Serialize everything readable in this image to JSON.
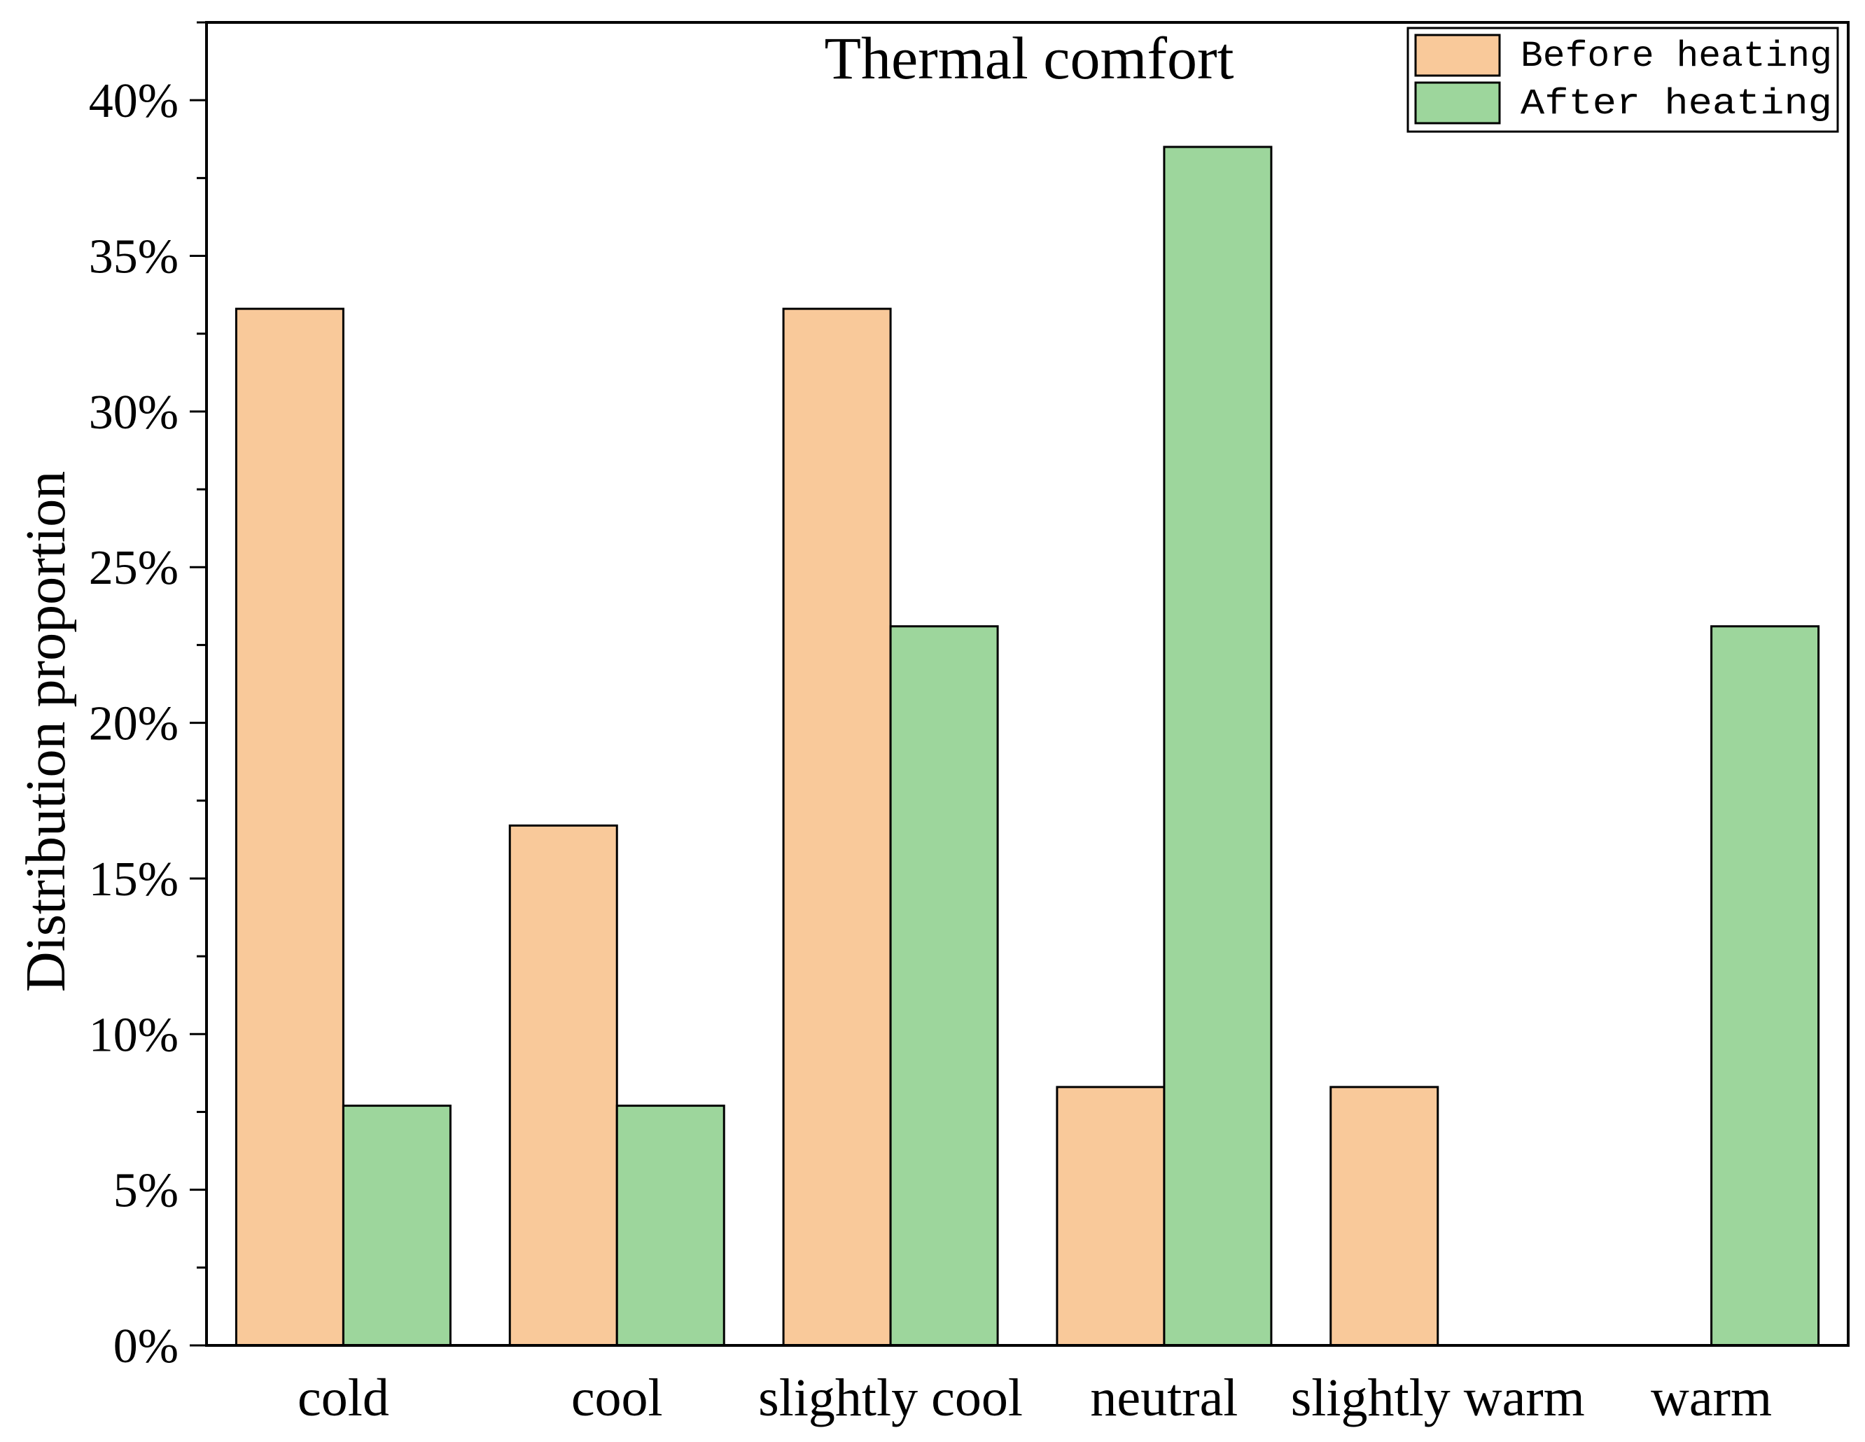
{
  "chart_data": {
    "type": "bar",
    "title": "Thermal comfort",
    "xlabel": "",
    "ylabel": "Distribution proportion",
    "categories": [
      "cold",
      "cool",
      "slightly cool",
      "neutral",
      "slightly warm",
      "warm"
    ],
    "series": [
      {
        "name": "Before heating",
        "color": "#F9C99A",
        "values": [
          33.3,
          16.7,
          33.3,
          8.3,
          8.3,
          0
        ]
      },
      {
        "name": "After heating",
        "color": "#9DD69C",
        "values": [
          7.7,
          7.7,
          23.1,
          38.5,
          0,
          23.1
        ]
      }
    ],
    "ylim": [
      0,
      42.5
    ],
    "yticks": [
      0,
      5,
      10,
      15,
      20,
      25,
      30,
      35,
      40
    ],
    "ytick_labels": [
      "0%",
      "5%",
      "10%",
      "15%",
      "20%",
      "25%",
      "30%",
      "35%",
      "40%"
    ],
    "grid": false,
    "legend_position": "top-right"
  }
}
